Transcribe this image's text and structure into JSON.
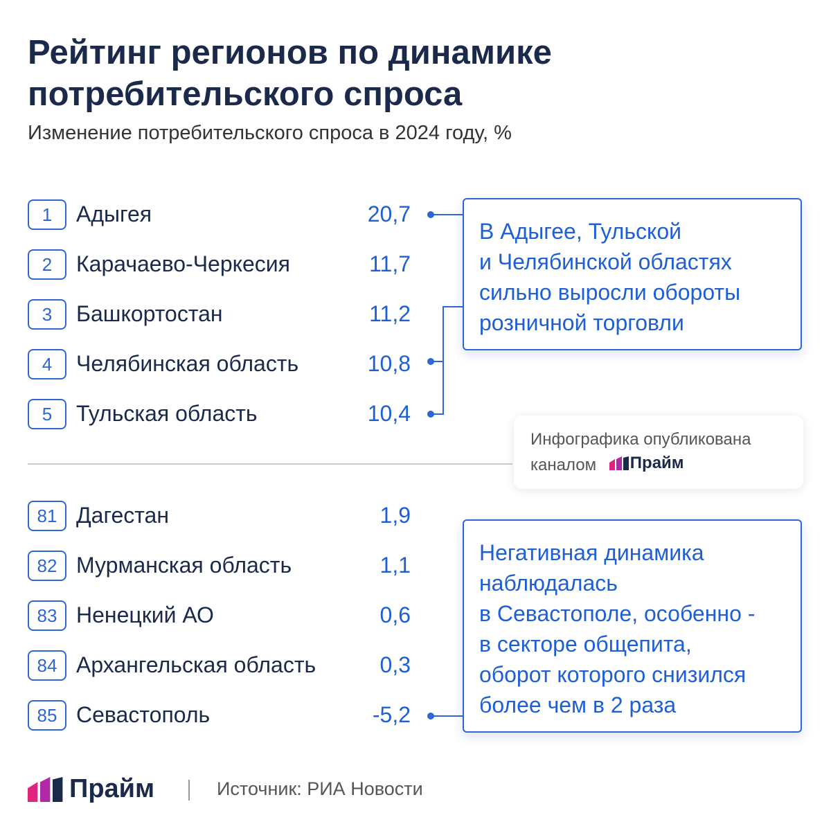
{
  "header": {
    "title_lines": [
      "Рейтинг регионов по динамике",
      "потребительского спроса"
    ],
    "subtitle": "Изменение потребительского спроса в 2024 году, %"
  },
  "top": [
    {
      "rank": "1",
      "name": "Адыгея",
      "value": "20,7"
    },
    {
      "rank": "2",
      "name": "Карачаево-Черкесия",
      "value": "11,7"
    },
    {
      "rank": "3",
      "name": "Башкортостан",
      "value": "11,2"
    },
    {
      "rank": "4",
      "name": "Челябинская область",
      "value": "10,8"
    },
    {
      "rank": "5",
      "name": "Тульская область",
      "value": "10,4"
    }
  ],
  "bottom": [
    {
      "rank": "81",
      "name": "Дагестан",
      "value": "1,9"
    },
    {
      "rank": "82",
      "name": "Мурманская область",
      "value": "1,1"
    },
    {
      "rank": "83",
      "name": "Ненецкий АО",
      "value": "0,6"
    },
    {
      "rank": "84",
      "name": "Архангельская область",
      "value": "0,3"
    },
    {
      "rank": "85",
      "name": "Севастополь",
      "value": "-5,2"
    }
  ],
  "callouts": [
    {
      "lines": [
        "В Адыгее, Тульской",
        "и Челябинской областях",
        "сильно выросли обороты",
        "розничной торговли"
      ]
    },
    {
      "lines": [
        "Негативная динамика",
        "наблюдалась",
        "в Севастополе, особенно -",
        "в секторе общепита,",
        "оборот которого снизился",
        "более чем в 2 раза"
      ]
    }
  ],
  "publisher_badge": {
    "lines": [
      "Инфографика опубликована",
      "каналом"
    ],
    "logo": "Прайм"
  },
  "footer": {
    "logo": "Прайм",
    "source": "Источник: РИА Новости"
  }
}
